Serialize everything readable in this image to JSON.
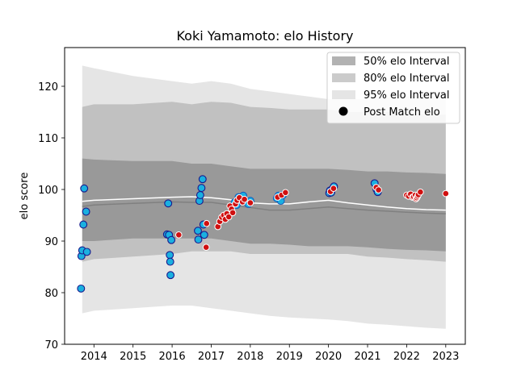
{
  "chart_data": {
    "type": "scatter",
    "title": "Koki Yamamoto: elo History",
    "xlabel": "",
    "ylabel": "elo score",
    "xlim": [
      2013.25,
      2023.5
    ],
    "ylim": [
      70,
      127.5
    ],
    "x_ticks": [
      "2014",
      "2015",
      "2016",
      "2017",
      "2018",
      "2019",
      "2020",
      "2021",
      "2022",
      "2023"
    ],
    "y_ticks": [
      "70",
      "80",
      "90",
      "100",
      "110",
      "120"
    ],
    "legend": {
      "placement": "top-right",
      "entries": [
        "50% elo Interval",
        "80% elo Interval",
        "95% elo Interval",
        "Post Match elo"
      ]
    },
    "colors": {
      "band50": "#7f7f7f",
      "band80": "#a9a9a9",
      "band95": "#d3d3d3",
      "median_line": "#808080",
      "mean_line": "#ffffff",
      "opponent_face": "#1ab0e0",
      "opponent_edge_dark": "#1a1a8c",
      "opponent_edge_blue": "#1560c0",
      "post_match": "#d01010"
    },
    "bands": {
      "x": [
        2013.7,
        2014.0,
        2015.0,
        2016.0,
        2016.5,
        2017.0,
        2017.5,
        2018.0,
        2018.5,
        2019.0,
        2019.5,
        2020.0,
        2020.5,
        2021.0,
        2021.5,
        2022.0,
        2022.5,
        2023.0
      ],
      "lo95": [
        76.0,
        76.5,
        77.0,
        77.5,
        77.5,
        77.0,
        76.5,
        76.0,
        75.5,
        75.2,
        75.0,
        74.8,
        74.5,
        74.0,
        73.8,
        73.5,
        73.2,
        73.0
      ],
      "hi95": [
        124.0,
        123.5,
        122.0,
        121.0,
        120.5,
        121.0,
        120.5,
        119.5,
        119.0,
        118.5,
        118.0,
        117.5,
        117.5,
        117.5,
        117.8,
        118.0,
        118.2,
        118.5
      ],
      "lo80": [
        86.0,
        86.5,
        87.0,
        87.5,
        88.0,
        88.0,
        88.0,
        87.5,
        87.5,
        87.5,
        87.5,
        87.5,
        87.5,
        87.0,
        86.8,
        86.5,
        86.3,
        86.0
      ],
      "hi80": [
        116.0,
        116.5,
        116.5,
        117.0,
        116.5,
        117.0,
        116.8,
        116.0,
        115.8,
        115.5,
        115.5,
        115.5,
        115.0,
        115.0,
        115.0,
        114.8,
        114.5,
        114.5
      ],
      "lo50": [
        90.0,
        90.0,
        90.5,
        90.5,
        90.5,
        90.5,
        90.0,
        89.5,
        89.5,
        89.3,
        89.0,
        89.0,
        89.0,
        88.8,
        88.5,
        88.3,
        88.2,
        88.0
      ],
      "hi50": [
        106.0,
        105.8,
        105.5,
        105.5,
        105.0,
        105.0,
        104.5,
        104.0,
        104.0,
        104.0,
        104.0,
        104.0,
        103.8,
        103.5,
        103.5,
        103.3,
        103.2,
        103.0
      ],
      "median": [
        96.7,
        97.0,
        97.3,
        97.6,
        97.5,
        97.5,
        97.0,
        96.5,
        96.0,
        96.0,
        96.3,
        96.6,
        96.3,
        96.0,
        95.8,
        95.6,
        95.4,
        95.3
      ],
      "mean": [
        97.7,
        97.9,
        98.2,
        98.5,
        98.6,
        98.4,
        98.0,
        97.4,
        97.2,
        97.2,
        97.6,
        97.9,
        97.4,
        97.0,
        96.6,
        96.3,
        96.1,
        96.0
      ]
    },
    "opponent_elo_points": [
      {
        "x": 2013.67,
        "y": 80.8,
        "edge": "dark"
      },
      {
        "x": 2013.68,
        "y": 87.1,
        "edge": "dark"
      },
      {
        "x": 2013.7,
        "y": 88.2,
        "edge": "dark"
      },
      {
        "x": 2013.73,
        "y": 93.2,
        "edge": "dark"
      },
      {
        "x": 2013.75,
        "y": 100.2,
        "edge": "dark"
      },
      {
        "x": 2013.8,
        "y": 95.7,
        "edge": "dark"
      },
      {
        "x": 2013.82,
        "y": 87.9,
        "edge": "dark"
      },
      {
        "x": 2015.87,
        "y": 91.3,
        "edge": "dark"
      },
      {
        "x": 2015.9,
        "y": 97.3,
        "edge": "dark"
      },
      {
        "x": 2015.92,
        "y": 91.2,
        "edge": "dark"
      },
      {
        "x": 2015.94,
        "y": 87.3,
        "edge": "dark"
      },
      {
        "x": 2015.95,
        "y": 86.0,
        "edge": "dark"
      },
      {
        "x": 2015.96,
        "y": 83.4,
        "edge": "dark"
      },
      {
        "x": 2015.98,
        "y": 90.2,
        "edge": "dark"
      },
      {
        "x": 2016.66,
        "y": 92.0,
        "edge": "dark"
      },
      {
        "x": 2016.67,
        "y": 90.3,
        "edge": "dark"
      },
      {
        "x": 2016.7,
        "y": 97.8,
        "edge": "dark"
      },
      {
        "x": 2016.72,
        "y": 98.9,
        "edge": "dark"
      },
      {
        "x": 2016.75,
        "y": 100.3,
        "edge": "dark"
      },
      {
        "x": 2016.78,
        "y": 102.0,
        "edge": "dark"
      },
      {
        "x": 2016.8,
        "y": 93.2,
        "edge": "dark"
      },
      {
        "x": 2016.82,
        "y": 91.2,
        "edge": "dark"
      },
      {
        "x": 2017.6,
        "y": 97.5,
        "edge": "blue"
      },
      {
        "x": 2017.65,
        "y": 97.0,
        "edge": "blue"
      },
      {
        "x": 2017.7,
        "y": 98.5,
        "edge": "blue"
      },
      {
        "x": 2017.75,
        "y": 97.8,
        "edge": "blue"
      },
      {
        "x": 2017.78,
        "y": 98.3,
        "edge": "blue"
      },
      {
        "x": 2017.82,
        "y": 98.8,
        "edge": "blue"
      },
      {
        "x": 2017.95,
        "y": 97.2,
        "edge": "blue"
      },
      {
        "x": 2018.0,
        "y": 97.8,
        "edge": "blue"
      },
      {
        "x": 2018.68,
        "y": 98.3,
        "edge": "blue"
      },
      {
        "x": 2018.72,
        "y": 98.8,
        "edge": "blue"
      },
      {
        "x": 2018.78,
        "y": 97.8,
        "edge": "blue"
      },
      {
        "x": 2018.83,
        "y": 98.9,
        "edge": "blue"
      },
      {
        "x": 2020.02,
        "y": 99.3,
        "edge": "dark"
      },
      {
        "x": 2020.04,
        "y": 99.8,
        "edge": "dark"
      },
      {
        "x": 2020.07,
        "y": 99.4,
        "edge": "dark"
      },
      {
        "x": 2020.1,
        "y": 100.1,
        "edge": "dark"
      },
      {
        "x": 2020.14,
        "y": 100.6,
        "edge": "dark"
      },
      {
        "x": 2021.18,
        "y": 101.2,
        "edge": "dark"
      },
      {
        "x": 2021.23,
        "y": 100.0,
        "edge": "dark"
      },
      {
        "x": 2021.26,
        "y": 99.5,
        "edge": "dark"
      }
    ],
    "post_match_points": [
      {
        "x": 2016.17,
        "y": 91.2
      },
      {
        "x": 2016.87,
        "y": 88.8
      },
      {
        "x": 2016.88,
        "y": 93.4
      },
      {
        "x": 2017.17,
        "y": 92.8
      },
      {
        "x": 2017.22,
        "y": 93.8
      },
      {
        "x": 2017.27,
        "y": 94.6
      },
      {
        "x": 2017.32,
        "y": 95.0
      },
      {
        "x": 2017.36,
        "y": 94.2
      },
      {
        "x": 2017.4,
        "y": 95.3
      },
      {
        "x": 2017.45,
        "y": 94.7
      },
      {
        "x": 2017.48,
        "y": 96.8
      },
      {
        "x": 2017.52,
        "y": 96.2
      },
      {
        "x": 2017.55,
        "y": 95.5
      },
      {
        "x": 2017.62,
        "y": 97.2
      },
      {
        "x": 2017.66,
        "y": 97.9
      },
      {
        "x": 2017.72,
        "y": 98.4
      },
      {
        "x": 2017.8,
        "y": 97.6
      },
      {
        "x": 2017.85,
        "y": 98.1
      },
      {
        "x": 2018.0,
        "y": 97.4
      },
      {
        "x": 2018.7,
        "y": 98.5
      },
      {
        "x": 2018.8,
        "y": 98.9
      },
      {
        "x": 2018.9,
        "y": 99.4
      },
      {
        "x": 2020.05,
        "y": 99.6
      },
      {
        "x": 2020.13,
        "y": 100.2
      },
      {
        "x": 2021.22,
        "y": 100.4
      },
      {
        "x": 2021.28,
        "y": 99.9
      },
      {
        "x": 2022.0,
        "y": 98.9
      },
      {
        "x": 2022.05,
        "y": 98.7
      },
      {
        "x": 2022.1,
        "y": 99.1
      },
      {
        "x": 2022.15,
        "y": 98.5
      },
      {
        "x": 2022.18,
        "y": 98.6
      },
      {
        "x": 2022.22,
        "y": 98.9
      },
      {
        "x": 2022.24,
        "y": 98.2
      },
      {
        "x": 2022.26,
        "y": 98.4
      },
      {
        "x": 2022.28,
        "y": 98.7
      },
      {
        "x": 2022.3,
        "y": 99.0
      },
      {
        "x": 2022.35,
        "y": 99.5
      },
      {
        "x": 2023.0,
        "y": 99.2
      }
    ]
  }
}
